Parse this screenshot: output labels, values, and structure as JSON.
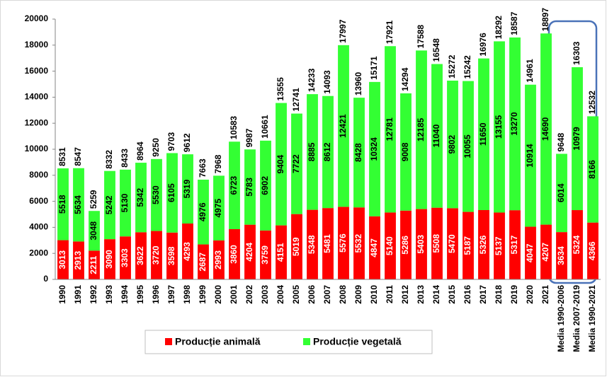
{
  "chart_data": {
    "type": "stacked-bar",
    "categories": [
      "1990",
      "1991",
      "1992",
      "1993",
      "1994",
      "1995",
      "1996",
      "1997",
      "1998",
      "1999",
      "2000",
      "2001",
      "2002",
      "2003",
      "2004",
      "2005",
      "2006",
      "2007",
      "2008",
      "2009",
      "2010",
      "2011",
      "2012",
      "2013",
      "2014",
      "2015",
      "2016",
      "2017",
      "2018",
      "2019",
      "2020",
      "2021",
      "Media 1990-2006",
      "Media 2007-2019",
      "Media 1990-2021"
    ],
    "series": [
      {
        "name": "Producție animală",
        "color": "#ff0000",
        "values": [
          3013,
          2913,
          2211,
          3090,
          3303,
          3622,
          3720,
          3598,
          4293,
          2687,
          2993,
          3860,
          4204,
          3759,
          4151,
          5019,
          5348,
          5481,
          5576,
          5532,
          4847,
          5140,
          5286,
          5403,
          5508,
          5470,
          5187,
          5326,
          5137,
          5317,
          4047,
          4207,
          3634,
          5324,
          4366
        ]
      },
      {
        "name": "Producție vegetală",
        "color": "#33ff33",
        "values": [
          5518,
          5634,
          3048,
          5242,
          5130,
          5342,
          5530,
          6105,
          5319,
          4976,
          4975,
          6723,
          5783,
          6902,
          9404,
          7722,
          8885,
          8612,
          12421,
          8428,
          10324,
          12781,
          9008,
          12185,
          11040,
          9802,
          10055,
          11650,
          13155,
          13270,
          10914,
          14690,
          6014,
          10979,
          8166
        ]
      }
    ],
    "totals": [
      8531,
      8547,
      5259,
      8332,
      8433,
      8964,
      9250,
      9703,
      9612,
      7663,
      7968,
      10583,
      9987,
      10661,
      13555,
      12741,
      14233,
      14093,
      17997,
      13960,
      15171,
      17921,
      14294,
      17588,
      16548,
      15272,
      15242,
      16976,
      18292,
      18587,
      14961,
      18897,
      9648,
      16303,
      12532
    ],
    "ylim": [
      0,
      20000
    ],
    "yticks": [
      0,
      2000,
      4000,
      6000,
      8000,
      10000,
      12000,
      14000,
      16000,
      18000,
      20000
    ],
    "grid": false
  }
}
